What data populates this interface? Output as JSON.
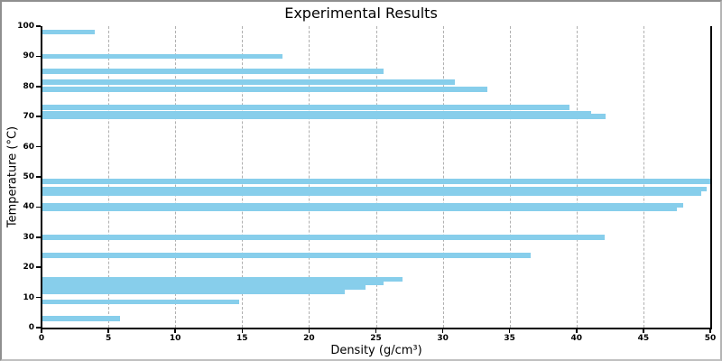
{
  "window": {
    "background": "#ffffff",
    "border_color": "#8f8f8f"
  },
  "chart_data": {
    "type": "bar",
    "orientation": "horizontal",
    "title": "Experimental Results",
    "xlabel": "Density (g/cm³)",
    "ylabel": "Temperature (°C)",
    "xlim": [
      0,
      50
    ],
    "ylim": [
      0,
      100
    ],
    "x_ticks": [
      0,
      5,
      10,
      15,
      20,
      25,
      30,
      35,
      40,
      45,
      50
    ],
    "y_ticks": [
      0,
      10,
      20,
      30,
      40,
      50,
      60,
      70,
      80,
      90,
      100
    ],
    "grid": "vertical-dashed",
    "grid_color": "#b0b0b0",
    "bar_color": "#87CEEB",
    "legend": "none",
    "points": [
      {
        "temperature": 98,
        "density": 4.0
      },
      {
        "temperature": 90,
        "density": 18.0
      },
      {
        "temperature": 85,
        "density": 25.6
      },
      {
        "temperature": 81.5,
        "density": 30.9
      },
      {
        "temperature": 79,
        "density": 33.3
      },
      {
        "temperature": 73,
        "density": 39.5
      },
      {
        "temperature": 71,
        "density": 41.1
      },
      {
        "temperature": 70,
        "density": 42.2
      },
      {
        "temperature": 48.5,
        "density": 50.0
      },
      {
        "temperature": 46,
        "density": 49.7
      },
      {
        "temperature": 44.5,
        "density": 49.3
      },
      {
        "temperature": 40.5,
        "density": 48.0
      },
      {
        "temperature": 39.5,
        "density": 47.5
      },
      {
        "temperature": 30,
        "density": 42.1
      },
      {
        "temperature": 24,
        "density": 36.6
      },
      {
        "temperature": 16,
        "density": 27.0
      },
      {
        "temperature": 14.8,
        "density": 25.6
      },
      {
        "temperature": 13.5,
        "density": 24.2
      },
      {
        "temperature": 12,
        "density": 22.7
      },
      {
        "temperature": 8.5,
        "density": 14.8
      },
      {
        "temperature": 3,
        "density": 5.9
      }
    ]
  }
}
